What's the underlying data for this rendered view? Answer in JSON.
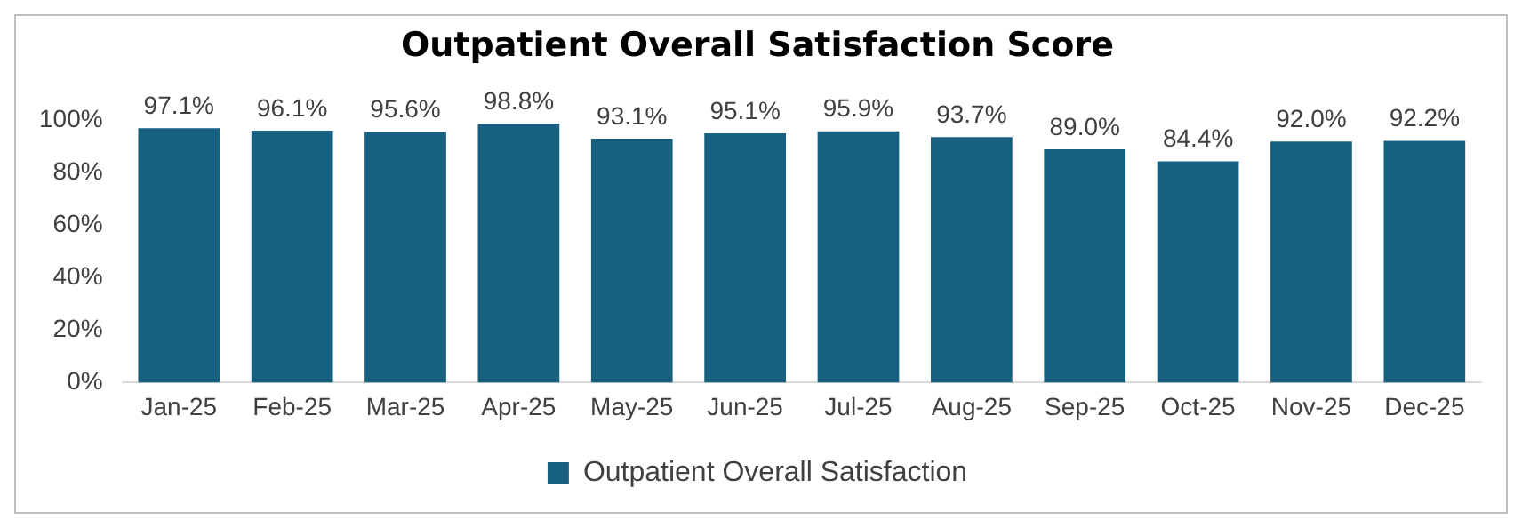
{
  "chart_data": {
    "type": "bar",
    "title": "Outpatient Overall Satisfaction Score",
    "categories": [
      "Jan-25",
      "Feb-25",
      "Mar-25",
      "Apr-25",
      "May-25",
      "Jun-25",
      "Jul-25",
      "Aug-25",
      "Sep-25",
      "Oct-25",
      "Nov-25",
      "Dec-25"
    ],
    "series": [
      {
        "name": "Outpatient Overall Satisfaction",
        "color": "#17607f",
        "values": [
          97.1,
          96.1,
          95.6,
          98.8,
          93.1,
          95.1,
          95.9,
          93.7,
          89.0,
          84.4,
          92.0,
          92.2
        ],
        "value_labels": [
          "97.1%",
          "96.1%",
          "95.6%",
          "98.8%",
          "93.1%",
          "95.1%",
          "95.9%",
          "93.7%",
          "89.0%",
          "84.4%",
          "92.0%",
          "92.2%"
        ]
      }
    ],
    "ylim": [
      0,
      100
    ],
    "yticks": [
      {
        "value": 0,
        "label": "0%"
      },
      {
        "value": 20,
        "label": "20%"
      },
      {
        "value": 40,
        "label": "40%"
      },
      {
        "value": 60,
        "label": "60%"
      },
      {
        "value": 80,
        "label": "80%"
      },
      {
        "value": 100,
        "label": "100%"
      }
    ],
    "grid": false,
    "legend": "bottom"
  }
}
